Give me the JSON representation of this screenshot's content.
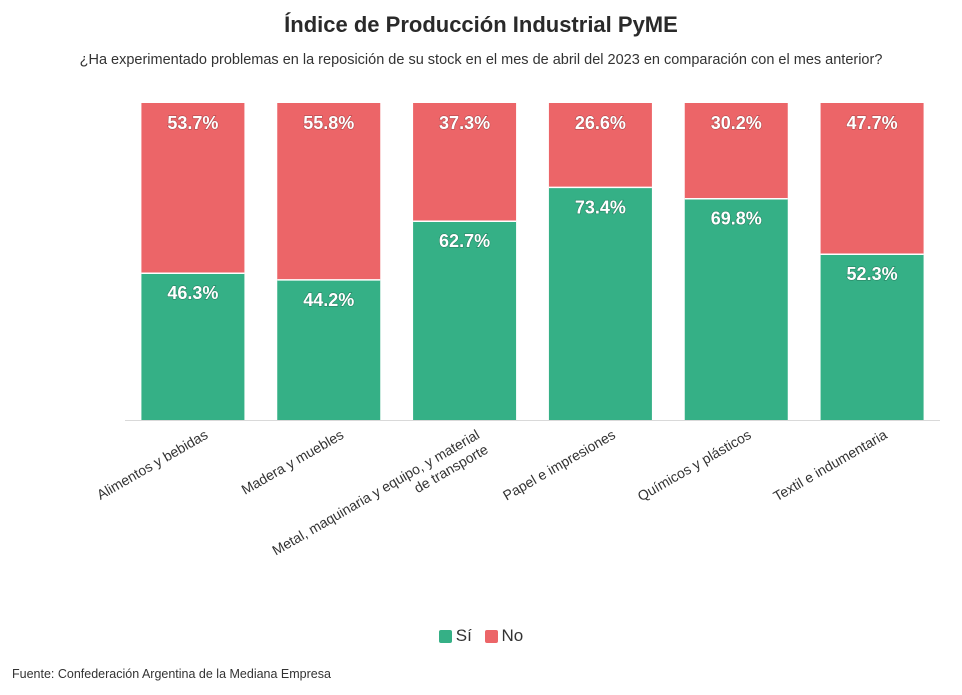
{
  "colors": {
    "si": "#35b086",
    "no": "#ec6568",
    "axis": "#d9d9d9"
  },
  "legend": {
    "si_label": "Sí",
    "no_label": "No"
  },
  "source": "Fuente: Confederación Argentina de la Mediana Empresa",
  "chart_data": {
    "type": "bar",
    "stacked": true,
    "title": "Índice de Producción Industrial PyME",
    "subtitle": "¿Ha experimentado problemas en la reposición de su stock en el mes de abril del 2023 en comparación con el mes anterior?",
    "categories": [
      [
        "Alimentos y bebidas"
      ],
      [
        "Madera y muebles"
      ],
      [
        "Metal, maquinaria y equipo, y material",
        "de transporte"
      ],
      [
        "Papel e impresiones"
      ],
      [
        "Químicos y plásticos"
      ],
      [
        "Textil e indumentaria"
      ]
    ],
    "series": [
      {
        "name": "Sí",
        "values": [
          46.3,
          44.2,
          62.7,
          73.4,
          69.8,
          52.3
        ],
        "labels": [
          "46.3%",
          "44.2%",
          "62.7%",
          "73.4%",
          "69.8%",
          "52.3%"
        ]
      },
      {
        "name": "No",
        "values": [
          53.7,
          55.8,
          37.3,
          26.6,
          30.2,
          47.7
        ],
        "labels": [
          "53.7%",
          "55.8%",
          "37.3%",
          "26.6%",
          "30.2%",
          "47.7%"
        ]
      }
    ],
    "ylim": [
      0,
      100
    ],
    "legend_position": "bottom"
  }
}
